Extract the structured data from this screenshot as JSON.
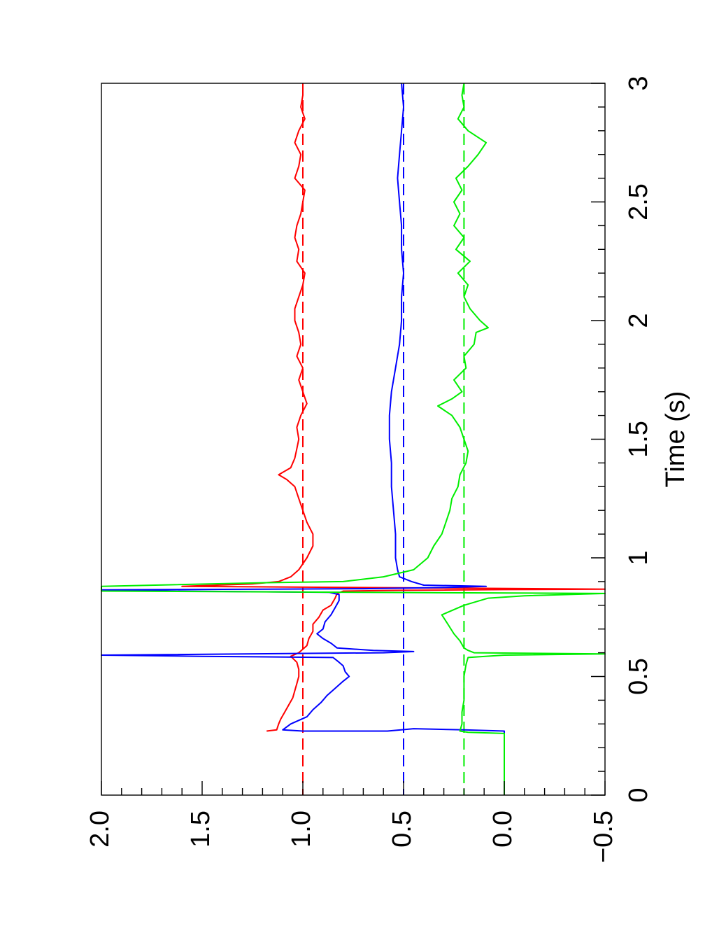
{
  "chart_data": {
    "type": "line",
    "orientation": "rotated-90",
    "xlabel": "Time (s)",
    "ylabel": "",
    "xlim": [
      0,
      3
    ],
    "ylim": [
      -0.5,
      2.0
    ],
    "x_ticks": [
      "0",
      "0.5",
      "1",
      "1.5",
      "2",
      "2.5",
      "3"
    ],
    "y_ticks": [
      "−0.5",
      "0.0",
      "0.5",
      "1.0",
      "1.5",
      "2.0"
    ],
    "grid": false,
    "legend": "none",
    "reference_lines": [
      {
        "value": 1.0,
        "color": "#ff0000",
        "style": "dashed"
      },
      {
        "value": 0.5,
        "color": "#0000ff",
        "style": "dashed"
      },
      {
        "value": 0.2,
        "color": "#00ee00",
        "style": "dashed"
      }
    ],
    "series": [
      {
        "color": "#ff0000",
        "points": [
          [
            0.27,
            1.18
          ],
          [
            0.275,
            1.13
          ],
          [
            0.3,
            1.12
          ],
          [
            0.32,
            1.11
          ],
          [
            0.35,
            1.09
          ],
          [
            0.38,
            1.07
          ],
          [
            0.41,
            1.05
          ],
          [
            0.44,
            1.04
          ],
          [
            0.47,
            1.03
          ],
          [
            0.5,
            1.02
          ],
          [
            0.53,
            1.02
          ],
          [
            0.56,
            1.03
          ],
          [
            0.585,
            1.06
          ],
          [
            0.6,
            1.02
          ],
          [
            0.615,
            1.0
          ],
          [
            0.63,
            0.98
          ],
          [
            0.66,
            0.97
          ],
          [
            0.69,
            0.95
          ],
          [
            0.72,
            0.95
          ],
          [
            0.75,
            0.92
          ],
          [
            0.78,
            0.9
          ],
          [
            0.8,
            0.86
          ],
          [
            0.83,
            0.84
          ],
          [
            0.85,
            0.83
          ],
          [
            0.86,
            0.8
          ],
          [
            0.863,
            0.5
          ],
          [
            0.866,
            0.0
          ],
          [
            0.868,
            -0.5
          ],
          [
            0.88,
            1.6
          ],
          [
            0.89,
            1.25
          ],
          [
            0.9,
            1.12
          ],
          [
            0.92,
            1.06
          ],
          [
            0.95,
            1.02
          ],
          [
            1.0,
            0.98
          ],
          [
            1.05,
            0.95
          ],
          [
            1.1,
            0.95
          ],
          [
            1.15,
            0.98
          ],
          [
            1.2,
            1.0
          ],
          [
            1.25,
            1.02
          ],
          [
            1.3,
            1.04
          ],
          [
            1.33,
            1.08
          ],
          [
            1.35,
            1.12
          ],
          [
            1.38,
            1.06
          ],
          [
            1.42,
            1.04
          ],
          [
            1.46,
            1.03
          ],
          [
            1.5,
            1.02
          ],
          [
            1.55,
            1.03
          ],
          [
            1.6,
            1.01
          ],
          [
            1.65,
            0.98
          ],
          [
            1.7,
            1.0
          ],
          [
            1.75,
            1.02
          ],
          [
            1.8,
            1.0
          ],
          [
            1.85,
            1.03
          ],
          [
            1.9,
            1.01
          ],
          [
            1.95,
            1.02
          ],
          [
            2.0,
            1.04
          ],
          [
            2.05,
            1.04
          ],
          [
            2.1,
            1.02
          ],
          [
            2.15,
            1.0
          ],
          [
            2.2,
            0.99
          ],
          [
            2.25,
            1.03
          ],
          [
            2.3,
            1.02
          ],
          [
            2.35,
            1.04
          ],
          [
            2.4,
            1.03
          ],
          [
            2.45,
            1.01
          ],
          [
            2.5,
            1.0
          ],
          [
            2.55,
            0.99
          ],
          [
            2.6,
            1.04
          ],
          [
            2.65,
            1.02
          ],
          [
            2.7,
            1.01
          ],
          [
            2.75,
            1.04
          ],
          [
            2.8,
            1.02
          ],
          [
            2.85,
            0.99
          ],
          [
            2.9,
            1.01
          ],
          [
            2.95,
            1.0
          ],
          [
            3.0,
            1.0
          ]
        ]
      },
      {
        "color": "#0000ff",
        "points": [
          [
            0.0,
            0.0
          ],
          [
            0.27,
            0.0
          ],
          [
            0.275,
            0.2
          ],
          [
            0.28,
            0.45
          ],
          [
            0.27,
            0.58
          ],
          [
            0.27,
            1.0
          ],
          [
            0.275,
            1.1
          ],
          [
            0.3,
            1.06
          ],
          [
            0.33,
            0.98
          ],
          [
            0.36,
            0.95
          ],
          [
            0.39,
            0.91
          ],
          [
            0.42,
            0.88
          ],
          [
            0.45,
            0.84
          ],
          [
            0.48,
            0.8
          ],
          [
            0.5,
            0.77
          ],
          [
            0.52,
            0.79
          ],
          [
            0.545,
            0.8
          ],
          [
            0.56,
            0.82
          ],
          [
            0.58,
            0.85
          ],
          [
            0.585,
            1.5
          ],
          [
            0.59,
            2.0
          ],
          [
            0.6,
            0.6
          ],
          [
            0.605,
            0.45
          ],
          [
            0.61,
            0.65
          ],
          [
            0.62,
            0.83
          ],
          [
            0.64,
            0.86
          ],
          [
            0.66,
            0.9
          ],
          [
            0.68,
            0.93
          ],
          [
            0.7,
            0.9
          ],
          [
            0.73,
            0.89
          ],
          [
            0.76,
            0.86
          ],
          [
            0.79,
            0.84
          ],
          [
            0.82,
            0.82
          ],
          [
            0.845,
            0.82
          ],
          [
            0.855,
            0.87
          ],
          [
            0.86,
            1.65
          ],
          [
            0.865,
            2.0
          ],
          [
            0.87,
            0.7
          ],
          [
            0.875,
            0.3
          ],
          [
            0.88,
            0.09
          ],
          [
            0.885,
            0.4
          ],
          [
            0.9,
            0.46
          ],
          [
            0.92,
            0.52
          ],
          [
            0.95,
            0.53
          ],
          [
            1.0,
            0.54
          ],
          [
            1.1,
            0.54
          ],
          [
            1.2,
            0.55
          ],
          [
            1.3,
            0.56
          ],
          [
            1.4,
            0.56
          ],
          [
            1.5,
            0.57
          ],
          [
            1.6,
            0.57
          ],
          [
            1.7,
            0.56
          ],
          [
            1.8,
            0.54
          ],
          [
            1.9,
            0.52
          ],
          [
            2.0,
            0.51
          ],
          [
            2.1,
            0.51
          ],
          [
            2.2,
            0.5
          ],
          [
            2.3,
            0.51
          ],
          [
            2.4,
            0.51
          ],
          [
            2.5,
            0.52
          ],
          [
            2.6,
            0.53
          ],
          [
            2.7,
            0.52
          ],
          [
            2.8,
            0.51
          ],
          [
            2.9,
            0.5
          ],
          [
            3.0,
            0.51
          ]
        ]
      },
      {
        "color": "#00ee00",
        "points": [
          [
            0.0,
            0.0
          ],
          [
            0.26,
            0.0
          ],
          [
            0.265,
            0.18
          ],
          [
            0.27,
            0.22
          ],
          [
            0.3,
            0.21
          ],
          [
            0.35,
            0.21
          ],
          [
            0.4,
            0.2
          ],
          [
            0.45,
            0.2
          ],
          [
            0.5,
            0.2
          ],
          [
            0.55,
            0.19
          ],
          [
            0.58,
            0.18
          ],
          [
            0.59,
            0.0
          ],
          [
            0.595,
            -0.5
          ],
          [
            0.6,
            0.15
          ],
          [
            0.61,
            0.18
          ],
          [
            0.62,
            0.2
          ],
          [
            0.65,
            0.22
          ],
          [
            0.68,
            0.25
          ],
          [
            0.72,
            0.28
          ],
          [
            0.76,
            0.31
          ],
          [
            0.8,
            0.2
          ],
          [
            0.83,
            0.08
          ],
          [
            0.84,
            -0.1
          ],
          [
            0.85,
            -0.5
          ],
          [
            0.86,
            2.0
          ],
          [
            0.88,
            2.0
          ],
          [
            0.895,
            1.2
          ],
          [
            0.9,
            0.8
          ],
          [
            0.92,
            0.6
          ],
          [
            0.95,
            0.45
          ],
          [
            1.0,
            0.38
          ],
          [
            1.05,
            0.35
          ],
          [
            1.1,
            0.31
          ],
          [
            1.15,
            0.29
          ],
          [
            1.2,
            0.27
          ],
          [
            1.25,
            0.26
          ],
          [
            1.3,
            0.23
          ],
          [
            1.35,
            0.22
          ],
          [
            1.4,
            0.19
          ],
          [
            1.45,
            0.18
          ],
          [
            1.5,
            0.2
          ],
          [
            1.55,
            0.22
          ],
          [
            1.6,
            0.26
          ],
          [
            1.64,
            0.33
          ],
          [
            1.67,
            0.26
          ],
          [
            1.7,
            0.21
          ],
          [
            1.75,
            0.25
          ],
          [
            1.8,
            0.19
          ],
          [
            1.85,
            0.2
          ],
          [
            1.9,
            0.15
          ],
          [
            1.95,
            0.14
          ],
          [
            1.97,
            0.08
          ],
          [
            2.0,
            0.12
          ],
          [
            2.05,
            0.17
          ],
          [
            2.1,
            0.2
          ],
          [
            2.15,
            0.18
          ],
          [
            2.2,
            0.23
          ],
          [
            2.25,
            0.17
          ],
          [
            2.3,
            0.24
          ],
          [
            2.35,
            0.2
          ],
          [
            2.4,
            0.25
          ],
          [
            2.45,
            0.22
          ],
          [
            2.5,
            0.25
          ],
          [
            2.55,
            0.21
          ],
          [
            2.6,
            0.24
          ],
          [
            2.65,
            0.18
          ],
          [
            2.7,
            0.13
          ],
          [
            2.75,
            0.09
          ],
          [
            2.8,
            0.18
          ],
          [
            2.85,
            0.23
          ],
          [
            2.9,
            0.2
          ],
          [
            2.95,
            0.21
          ],
          [
            3.0,
            0.2
          ]
        ]
      }
    ]
  }
}
